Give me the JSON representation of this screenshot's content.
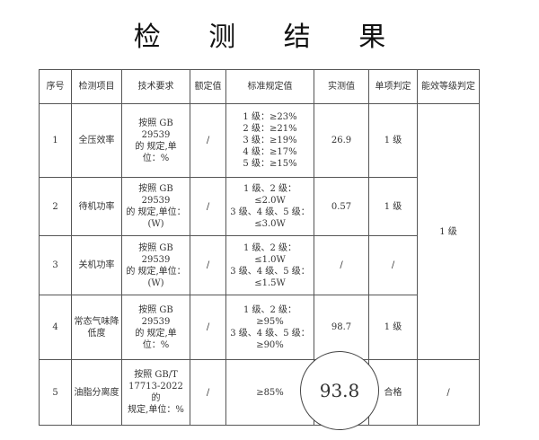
{
  "title": "检 测 结 果",
  "headers": [
    "序号",
    "检测项目",
    "技术要求",
    "额定值",
    "标准规定值",
    "实测值",
    "单项判定",
    "能效等级判定"
  ],
  "rows": [
    {
      "no": "1",
      "item": "全压效率",
      "req": [
        "按照 GB 29539",
        "的 规定,单",
        "位：%"
      ],
      "rated": "/",
      "std": [
        "1 级：≥23%",
        "2 级：≥21%",
        "3 级：≥19%",
        "4 级：≥17%",
        "5 级：≥15%"
      ],
      "measured": "26.9",
      "judge": "1 级"
    },
    {
      "no": "2",
      "item": "待机功率",
      "req": [
        "按照 GB 29539",
        "的 规定,单位：",
        "(W)"
      ],
      "rated": "/",
      "std": [
        "1 级、2 级：",
        "≤2.0W",
        "3 级、4 级、5 级：",
        "≤3.0W"
      ],
      "measured": "0.57",
      "judge": "1 级"
    },
    {
      "no": "3",
      "item": "关机功率",
      "req": [
        "按照 GB 29539",
        "的 规定,单位：",
        "(W)"
      ],
      "rated": "/",
      "std": [
        "1 级、2 级：",
        "≤1.0W",
        "3 级、4 级、5 级：",
        "≤1.5W"
      ],
      "measured": "/",
      "judge": "/"
    },
    {
      "no": "4",
      "item": "常态气味降低度",
      "req": [
        "按照 GB 29539",
        "的 规定,单",
        "位：%"
      ],
      "rated": "/",
      "std": [
        "1 级、2 级：",
        "≥95%",
        "3 级、4 级、5 级：",
        "≥90%"
      ],
      "measured": "98.7",
      "judge": "1 级"
    },
    {
      "no": "5",
      "item": "油脂分离度",
      "req": [
        "按照 GB/T",
        "17713-2022 的",
        "规定,单位：%"
      ],
      "rated": "/",
      "std": [
        "≥85%"
      ],
      "measured": "",
      "judge": "合格"
    }
  ],
  "grade_merged": "1 级",
  "grade_row5": "/",
  "highlight_value": "93.8"
}
